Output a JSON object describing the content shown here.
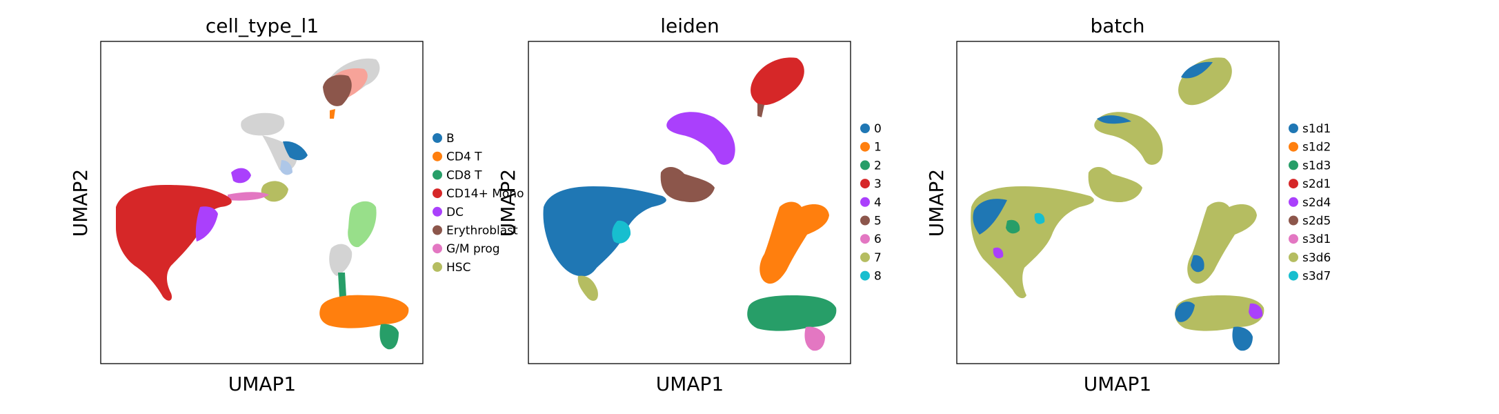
{
  "chart_data": [
    {
      "type": "scatter",
      "title": "cell_type_l1",
      "xlabel": "UMAP1",
      "ylabel": "UMAP2",
      "grid": false,
      "ticks": false,
      "legend_placement": "right",
      "legend": [
        "B",
        "CD4 T",
        "CD8 T",
        "CD14+ Mono",
        "DC",
        "Erythroblast",
        "G/M prog",
        "HSC"
      ],
      "colors": [
        "#1f77b4",
        "#ff7f0e",
        "#279e68",
        "#d62728",
        "#aa40fc",
        "#8c564b",
        "#e377c2",
        "#b5bd61"
      ],
      "extra_colors": {
        "light_gray": "#d3d3d3",
        "salmon": "#f7a399",
        "light_green": "#98df8a",
        "light_blue": "#aec7e8"
      }
    },
    {
      "type": "scatter",
      "title": "leiden",
      "xlabel": "UMAP1",
      "ylabel": "UMAP2",
      "grid": false,
      "ticks": false,
      "legend_placement": "right",
      "legend": [
        "0",
        "1",
        "2",
        "3",
        "4",
        "5",
        "6",
        "7",
        "8"
      ],
      "colors": [
        "#1f77b4",
        "#ff7f0e",
        "#279e68",
        "#d62728",
        "#aa40fc",
        "#8c564b",
        "#e377c2",
        "#b5bd61",
        "#17becf"
      ]
    },
    {
      "type": "scatter",
      "title": "batch",
      "xlabel": "UMAP1",
      "ylabel": "UMAP2",
      "grid": false,
      "ticks": false,
      "legend_placement": "right",
      "legend": [
        "s1d1",
        "s1d2",
        "s1d3",
        "s2d1",
        "s2d4",
        "s2d5",
        "s3d1",
        "s3d6",
        "s3d7"
      ],
      "colors": [
        "#1f77b4",
        "#ff7f0e",
        "#279e68",
        "#d62728",
        "#aa40fc",
        "#8c564b",
        "#e377c2",
        "#b5bd61",
        "#17becf"
      ]
    }
  ]
}
